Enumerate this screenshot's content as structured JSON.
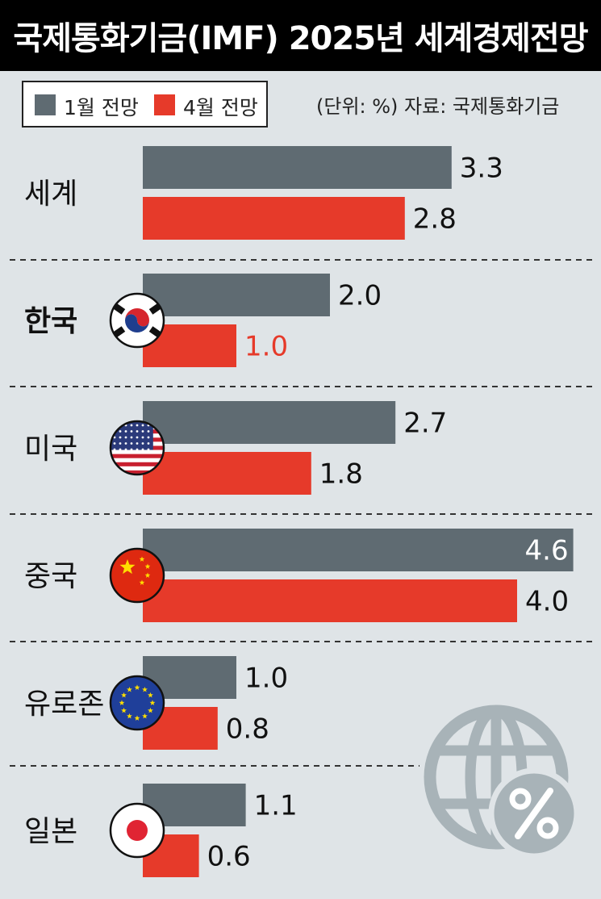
{
  "title": "국제통화기금(IMF) 2025년 세계경제전망",
  "unit_note": "(단위: %) 자료: 국제통화기금",
  "colors": {
    "january": "#5f6b72",
    "april": "#e63a2a",
    "background": "#dfe4e7",
    "highlight_text": "#e63a2a"
  },
  "chart_data": {
    "type": "bar",
    "orientation": "horizontal",
    "title": "국제통화기금(IMF) 2025년 세계경제전망",
    "unit": "%",
    "source": "국제통화기금",
    "categories": [
      "세계",
      "한국",
      "미국",
      "중국",
      "유로존",
      "일본"
    ],
    "series": [
      {
        "name": "1월 전망",
        "values": [
          3.3,
          2.0,
          2.7,
          4.6,
          1.0,
          1.1
        ]
      },
      {
        "name": "4월 전망",
        "values": [
          2.8,
          1.0,
          1.8,
          4.0,
          0.8,
          0.6
        ]
      }
    ],
    "value_labels": [
      [
        "3.3",
        "2.8"
      ],
      [
        "2.0",
        "1.0"
      ],
      [
        "2.7",
        "1.8"
      ],
      [
        "4.6",
        "4.0"
      ],
      [
        "1.0",
        "0.8"
      ],
      [
        "1.1",
        "0.6"
      ]
    ],
    "legend": {
      "position": "top-left",
      "entries": [
        "1월 전망",
        "4월 전망"
      ]
    },
    "flag_icons": [
      null,
      "korea-flag-icon",
      "usa-flag-icon",
      "china-flag-icon",
      "eu-flag-icon",
      "japan-flag-icon"
    ],
    "bold_categories": [
      "한국"
    ]
  }
}
